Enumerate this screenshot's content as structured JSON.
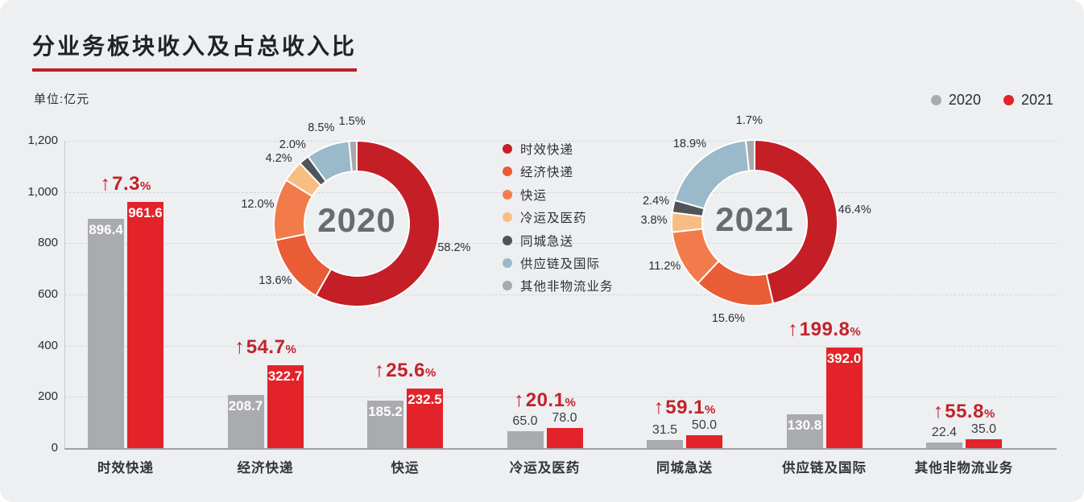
{
  "title": "分业务板块收入及占总收入比",
  "unit_label": "单位:亿元",
  "percent_sign": "%",
  "year_legend": [
    {
      "label": "2020",
      "color": "#a9abaf"
    },
    {
      "label": "2021",
      "color": "#e22329"
    }
  ],
  "chart_data": {
    "type": [
      "bar",
      "donut"
    ],
    "title": "分业务板块收入及占总收入比",
    "unit": "亿元",
    "categories": [
      "时效快递",
      "经济快递",
      "快运",
      "冷运及医药",
      "同城急送",
      "供应链及国际",
      "其他非物流业务"
    ],
    "segment_colors": [
      "#c41f26",
      "#e95c35",
      "#f27b4b",
      "#f8bd82",
      "#4e5458",
      "#9ab9ca",
      "#a7a9ad"
    ],
    "bar_series": [
      {
        "name": "2020",
        "color": "#a9abaf",
        "values": [
          896.4,
          208.7,
          185.2,
          65.0,
          31.5,
          130.8,
          22.4
        ]
      },
      {
        "name": "2021",
        "color": "#e22329",
        "values": [
          961.6,
          322.7,
          232.5,
          78.0,
          50.0,
          392.0,
          35.0
        ]
      }
    ],
    "growth_percent": [
      7.3,
      54.7,
      25.6,
      20.1,
      59.1,
      199.8,
      55.8
    ],
    "growth_arrow": "↑",
    "donuts": [
      {
        "label": "2020",
        "percents": [
          58.2,
          13.6,
          12.0,
          4.2,
          2.0,
          8.5,
          1.5
        ]
      },
      {
        "label": "2021",
        "percents": [
          46.4,
          15.6,
          11.2,
          3.8,
          2.4,
          18.9,
          1.7
        ]
      }
    ],
    "ylabel": "",
    "ylim": [
      0,
      1200
    ],
    "ytick_step": 200,
    "grid": "dashed-horizontal",
    "legend_position": "donut-middle"
  }
}
